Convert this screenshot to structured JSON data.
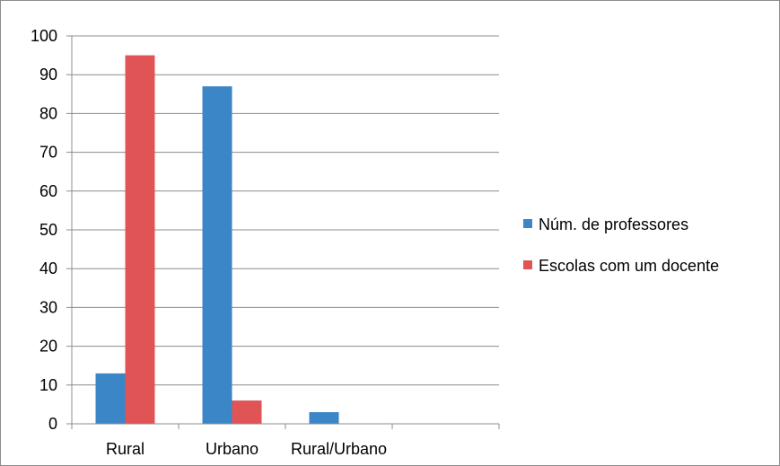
{
  "chart_data": {
    "type": "bar",
    "categories": [
      "Rural",
      "Urbano",
      "Rural/Urbano",
      ""
    ],
    "series": [
      {
        "name": "Núm. de professores",
        "color": "#3b86c7",
        "values": [
          13,
          87,
          3,
          0
        ]
      },
      {
        "name": "Escolas com um docente",
        "color": "#e05456",
        "values": [
          95,
          6,
          0,
          0
        ]
      }
    ],
    "ylim": [
      0,
      100
    ],
    "yticks": [
      "0",
      "10",
      "20",
      "30",
      "40",
      "50",
      "60",
      "70",
      "80",
      "90",
      "100"
    ],
    "ytick_values": [
      0,
      10,
      20,
      30,
      40,
      50,
      60,
      70,
      80,
      90,
      100
    ],
    "grid": true,
    "legend": "right"
  }
}
